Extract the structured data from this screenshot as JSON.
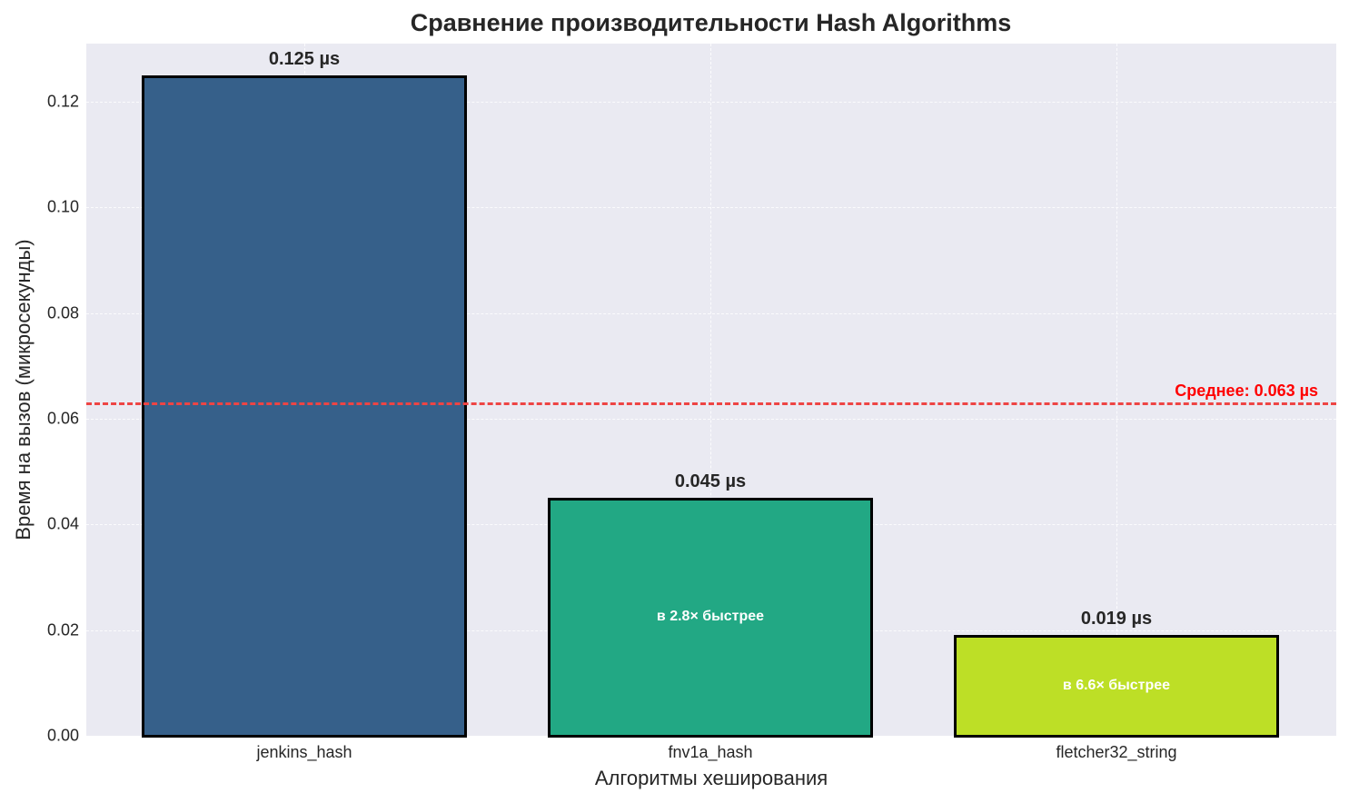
{
  "chart_data": {
    "type": "bar",
    "title": "Сравнение производительности Hash Algorithms",
    "xlabel": "Алгоритмы хеширования",
    "ylabel": "Время на вызов (микросекунды)",
    "categories": [
      "jenkins_hash",
      "fnv1a_hash",
      "fletcher32_string"
    ],
    "values": [
      0.125,
      0.045,
      0.019
    ],
    "value_labels": [
      "0.125 µs",
      "0.045 µs",
      "0.019 µs"
    ],
    "colors": [
      "#36608a",
      "#22a884",
      "#bddf26"
    ],
    "speedup_labels": [
      "",
      "в 2.8× быстрее",
      "в 6.6× быстрее"
    ],
    "mean": {
      "value": 0.063,
      "label": "Среднее: 0.063 µs",
      "color": "#ee4444"
    },
    "ylim": [
      0,
      0.131
    ],
    "yticks": [
      "0.00",
      "0.02",
      "0.04",
      "0.06",
      "0.08",
      "0.10",
      "0.12"
    ],
    "grid": true,
    "legend": null
  }
}
